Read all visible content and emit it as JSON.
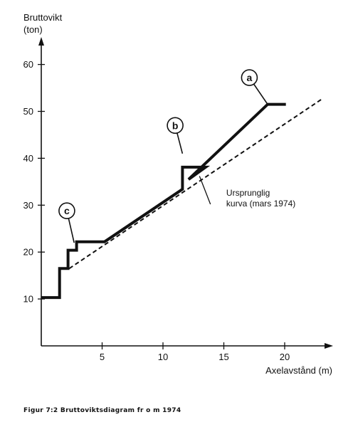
{
  "chart_data": {
    "type": "line",
    "ylabel_lines": [
      "Bruttovikt",
      "(ton)"
    ],
    "xlabel": "Axelavstånd (m)",
    "x_ticks": [
      5,
      10,
      15,
      20
    ],
    "y_ticks": [
      10,
      20,
      30,
      40,
      50,
      60
    ],
    "xlim": [
      0,
      23.5
    ],
    "ylim": [
      0,
      65
    ],
    "grid": false,
    "series": [
      {
        "style": "solid",
        "points": [
          [
            0,
            10.3
          ],
          [
            1.5,
            10.3
          ],
          [
            1.5,
            16.5
          ],
          [
            2.2,
            16.5
          ],
          [
            2.2,
            20.4
          ],
          [
            2.9,
            20.4
          ],
          [
            2.9,
            22.2
          ],
          [
            5.2,
            22.2
          ],
          [
            11.6,
            33.4
          ],
          [
            11.6,
            38.1
          ],
          [
            13.5,
            38.1
          ],
          [
            12.1,
            35.5
          ],
          [
            18.6,
            51.5
          ],
          [
            20.1,
            51.5
          ]
        ]
      },
      {
        "name": "Ursprunglig kurva (mars 1974)",
        "style": "dashed",
        "points": [
          [
            2.3,
            16.5
          ],
          [
            23.1,
            52.7
          ]
        ]
      }
    ],
    "annotations": {
      "circles": [
        {
          "label": "a",
          "x": 17.1,
          "y": 57.2,
          "lead_to": [
            18.6,
            51.5
          ]
        },
        {
          "label": "b",
          "x": 11.0,
          "y": 47.0,
          "lead_to": [
            11.6,
            41.0
          ]
        },
        {
          "label": "c",
          "x": 2.1,
          "y": 28.8,
          "lead_to": [
            2.7,
            22.0
          ]
        }
      ],
      "callout": {
        "lines": [
          "Ursprunglig",
          "kurva (mars 1974)"
        ],
        "x": 15.2,
        "y": 32.0,
        "lead_from": [
          13.9,
          30.2
        ],
        "lead_to": [
          13.0,
          36.2
        ]
      }
    }
  },
  "caption": "Figur 7:2  Bruttoviktsdiagram fr o m 1974"
}
